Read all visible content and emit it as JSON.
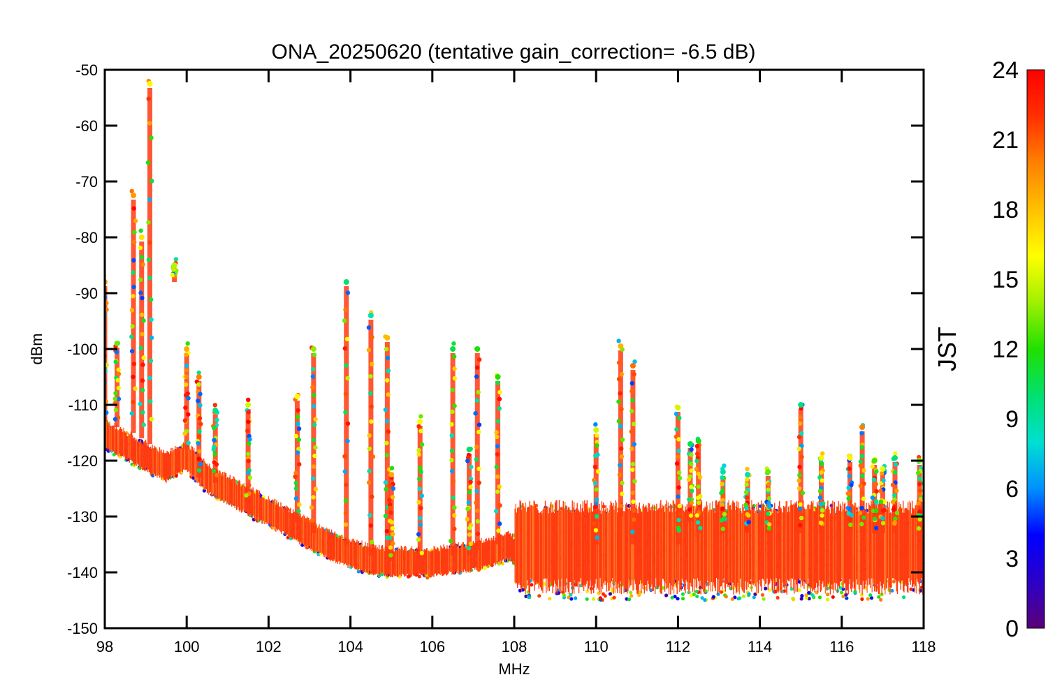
{
  "chart_data": {
    "type": "scatter",
    "title": "ONA_20250620 (tentative gain_correction= -6.5 dB)",
    "xlabel": "MHz",
    "ylabel": "dBm",
    "xlim": [
      98,
      118
    ],
    "ylim": [
      -150,
      -50
    ],
    "x_ticks": [
      "98",
      "100",
      "102",
      "104",
      "106",
      "108",
      "110",
      "112",
      "114",
      "116",
      "118"
    ],
    "y_ticks": [
      "-50",
      "-60",
      "-70",
      "-80",
      "-90",
      "-100",
      "-110",
      "-120",
      "-130",
      "-140",
      "-150"
    ],
    "grid": false,
    "marker": "asterisk",
    "color_by": "JST (hour)",
    "colorbar": {
      "label": "JST",
      "range": [
        0,
        24
      ],
      "ticks": [
        "24",
        "21",
        "18",
        "15",
        "12",
        "9",
        "6",
        "3",
        "0"
      ],
      "colormap": [
        "#5a0078",
        "#2c00c8",
        "#0000ff",
        "#0090ff",
        "#00e0d0",
        "#00e070",
        "#20e000",
        "#a0f000",
        "#ffff00",
        "#ffc000",
        "#ff8000",
        "#ff3000",
        "#ff0000"
      ]
    },
    "noise_floor": [
      {
        "x": 98.0,
        "y": -115
      },
      {
        "x": 98.5,
        "y": -117
      },
      {
        "x": 99.0,
        "y": -119
      },
      {
        "x": 99.5,
        "y": -121
      },
      {
        "x": 100.0,
        "y": -119
      },
      {
        "x": 100.5,
        "y": -123
      },
      {
        "x": 101.0,
        "y": -125
      },
      {
        "x": 101.5,
        "y": -127
      },
      {
        "x": 102.0,
        "y": -129
      },
      {
        "x": 102.5,
        "y": -131
      },
      {
        "x": 103.0,
        "y": -133
      },
      {
        "x": 103.5,
        "y": -135
      },
      {
        "x": 104.0,
        "y": -136.5
      },
      {
        "x": 104.5,
        "y": -137.5
      },
      {
        "x": 105.0,
        "y": -138
      },
      {
        "x": 105.5,
        "y": -138
      },
      {
        "x": 106.0,
        "y": -138
      },
      {
        "x": 106.5,
        "y": -137.5
      },
      {
        "x": 107.0,
        "y": -137
      },
      {
        "x": 107.5,
        "y": -136
      },
      {
        "x": 107.9,
        "y": -135
      },
      {
        "x": 108.0,
        "y": -136
      },
      {
        "x": 110.0,
        "y": -136
      },
      {
        "x": 112.0,
        "y": -136
      },
      {
        "x": 114.0,
        "y": -136
      },
      {
        "x": 116.0,
        "y": -136
      },
      {
        "x": 118.0,
        "y": -136
      }
    ],
    "peaks": [
      {
        "x": 98.0,
        "top": -88,
        "base": -113
      },
      {
        "x": 98.3,
        "top": -99,
        "base": -114
      },
      {
        "x": 98.7,
        "top": -72.5,
        "base": -115
      },
      {
        "x": 98.9,
        "top": -80,
        "base": -116
      },
      {
        "x": 99.1,
        "top": -52.5,
        "base": -117
      },
      {
        "x": 99.7,
        "top": -85,
        "base": -88
      },
      {
        "x": 100.0,
        "top": -100,
        "base": -118
      },
      {
        "x": 100.3,
        "top": -105,
        "base": -123
      },
      {
        "x": 100.7,
        "top": -111,
        "base": -124
      },
      {
        "x": 101.5,
        "top": -110,
        "base": -128
      },
      {
        "x": 102.7,
        "top": -108.5,
        "base": -131
      },
      {
        "x": 103.1,
        "top": -100,
        "base": -133
      },
      {
        "x": 103.9,
        "top": -88,
        "base": -135
      },
      {
        "x": 104.5,
        "top": -94,
        "base": -137
      },
      {
        "x": 104.9,
        "top": -98,
        "base": -137
      },
      {
        "x": 105.0,
        "top": -122.5,
        "base": -138
      },
      {
        "x": 105.7,
        "top": -113,
        "base": -138
      },
      {
        "x": 106.5,
        "top": -100,
        "base": -137
      },
      {
        "x": 106.9,
        "top": -118,
        "base": -137
      },
      {
        "x": 107.1,
        "top": -100,
        "base": -136
      },
      {
        "x": 107.6,
        "top": -105,
        "base": -135
      },
      {
        "x": 110.0,
        "top": -114.5,
        "base": -135
      },
      {
        "x": 110.6,
        "top": -99.5,
        "base": -130
      },
      {
        "x": 110.9,
        "top": -103,
        "base": -135
      },
      {
        "x": 112.0,
        "top": -110.5,
        "base": -135
      },
      {
        "x": 112.3,
        "top": -117,
        "base": -131
      },
      {
        "x": 112.5,
        "top": -116.5,
        "base": -133
      },
      {
        "x": 113.1,
        "top": -122,
        "base": -133
      },
      {
        "x": 113.7,
        "top": -122.5,
        "base": -133
      },
      {
        "x": 114.2,
        "top": -122,
        "base": -133
      },
      {
        "x": 115.0,
        "top": -110,
        "base": -133
      },
      {
        "x": 115.5,
        "top": -119.5,
        "base": -133
      },
      {
        "x": 116.2,
        "top": -119.5,
        "base": -133
      },
      {
        "x": 116.5,
        "top": -114,
        "base": -133
      },
      {
        "x": 116.8,
        "top": -120,
        "base": -133
      },
      {
        "x": 117.0,
        "top": -121.5,
        "base": -133
      },
      {
        "x": 117.3,
        "top": -119.5,
        "base": -133
      },
      {
        "x": 117.9,
        "top": -120,
        "base": -133
      }
    ]
  }
}
